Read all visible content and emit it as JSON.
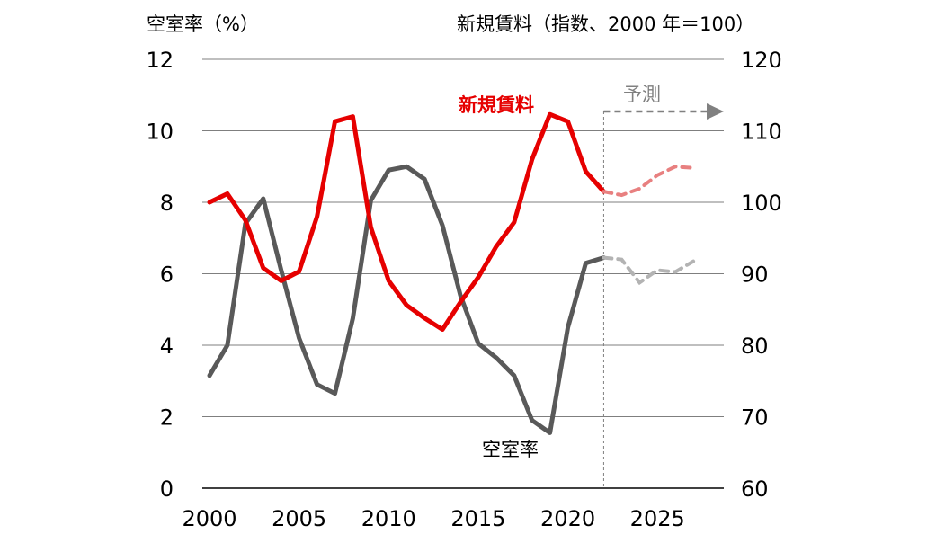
{
  "chart_data": {
    "type": "line",
    "y_left_title": "空室率（%）",
    "y_right_title": "新規賃料（指数、2000 年＝100）",
    "x_ticks": [
      "2000",
      "2005",
      "2010",
      "2015",
      "2020",
      "2025"
    ],
    "y_left_ticks": [
      "0",
      "2",
      "4",
      "6",
      "8",
      "10",
      "12"
    ],
    "y_right_ticks": [
      "60",
      "70",
      "80",
      "90",
      "100",
      "110",
      "120"
    ],
    "x_range": [
      2000,
      2028
    ],
    "y_left_range": [
      0,
      12
    ],
    "y_right_range": [
      60,
      120
    ],
    "forecast_start": 2022,
    "forecast_label": "予測",
    "series": [
      {
        "name": "新規賃料",
        "axis": "right",
        "color": "#e60000",
        "forecast_color": "#e88080",
        "actual": {
          "x": [
            2000,
            2001,
            2002,
            2003,
            2004,
            2005,
            2006,
            2007,
            2008,
            2009,
            2010,
            2011,
            2012,
            2013,
            2014,
            2015,
            2016,
            2017,
            2018,
            2019,
            2020,
            2021,
            2022
          ],
          "y": [
            100,
            101.2,
            97.5,
            90.8,
            89,
            90.3,
            98,
            111.3,
            112,
            96.5,
            89,
            85.6,
            83.8,
            82.2,
            86,
            89.5,
            93.8,
            97.2,
            106,
            112.3,
            111.3,
            104.3,
            101.5
          ]
        },
        "forecast": {
          "x": [
            2022,
            2023,
            2024,
            2025,
            2026,
            2027
          ],
          "y": [
            101.5,
            101,
            101.9,
            103.8,
            105,
            104.8
          ]
        }
      },
      {
        "name": "空室率",
        "axis": "left",
        "color": "#595959",
        "forecast_color": "#b3b3b3",
        "actual": {
          "x": [
            2000,
            2001,
            2002,
            2003,
            2004,
            2005,
            2006,
            2007,
            2008,
            2009,
            2010,
            2011,
            2012,
            2013,
            2014,
            2015,
            2016,
            2017,
            2018,
            2019,
            2020,
            2021,
            2022
          ],
          "y": [
            3.15,
            4.0,
            7.4,
            8.1,
            6.1,
            4.2,
            2.9,
            2.65,
            4.75,
            8.05,
            8.9,
            9.0,
            8.65,
            7.35,
            5.4,
            4.05,
            3.65,
            3.15,
            1.9,
            1.55,
            4.5,
            6.3,
            6.45
          ]
        },
        "forecast": {
          "x": [
            2022,
            2023,
            2024,
            2025,
            2026,
            2027
          ],
          "y": [
            6.45,
            6.4,
            5.75,
            6.1,
            6.05,
            6.35
          ]
        }
      }
    ]
  }
}
